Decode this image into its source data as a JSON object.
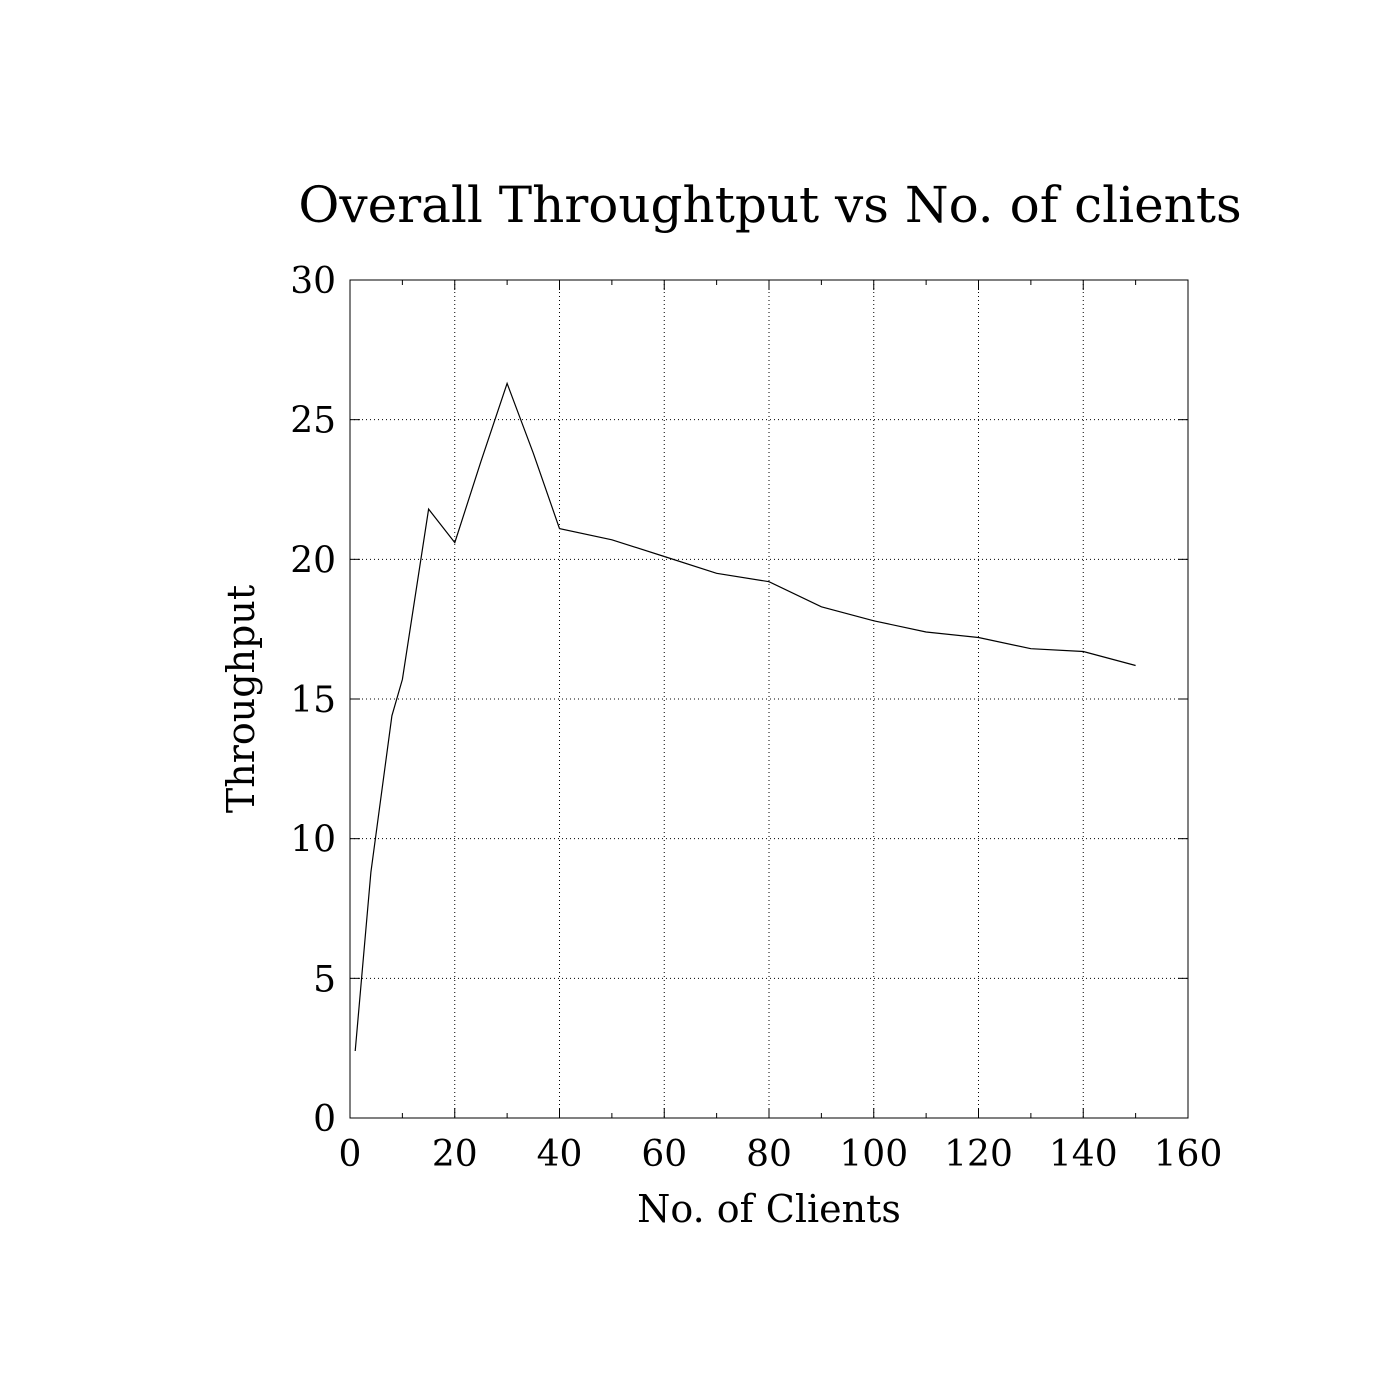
{
  "chart_data": {
    "type": "line",
    "title": "Overall Throughtput vs No. of clients",
    "xlabel": "No. of Clients",
    "ylabel": "Throughput",
    "xlim": [
      0,
      160
    ],
    "ylim": [
      0,
      30
    ],
    "xticks": [
      "0",
      "20",
      "40",
      "60",
      "80",
      "100",
      "120",
      "140",
      "160"
    ],
    "yticks": [
      "0",
      "5",
      "10",
      "15",
      "20",
      "25",
      "30"
    ],
    "grid": true,
    "legend": "none",
    "series": [
      {
        "x": [
          1,
          4,
          8,
          10,
          15,
          20,
          25,
          30,
          35,
          40,
          50,
          60,
          70,
          80,
          90,
          100,
          110,
          120,
          130,
          140,
          150
        ],
        "y": [
          2.4,
          8.8,
          14.4,
          15.7,
          21.8,
          20.6,
          23.5,
          26.3,
          23.8,
          21.1,
          20.7,
          20.1,
          19.5,
          19.2,
          18.3,
          17.8,
          17.4,
          17.2,
          16.8,
          16.7,
          16.2
        ]
      }
    ]
  }
}
